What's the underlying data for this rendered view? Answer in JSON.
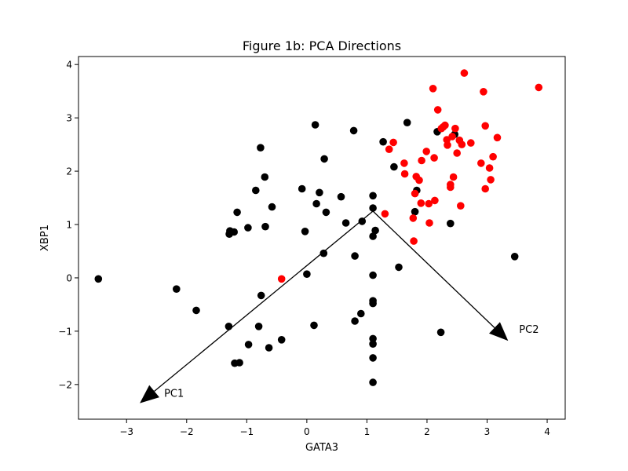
{
  "chart_data": {
    "type": "scatter",
    "title": "Figure 1b: PCA Directions",
    "xlabel": "GATA3",
    "ylabel": "XBP1",
    "xlim": [
      -3.8,
      4.3
    ],
    "ylim": [
      -2.65,
      4.15
    ],
    "xticks": [
      -3,
      -2,
      -1,
      0,
      1,
      2,
      3,
      4
    ],
    "yticks": [
      -2,
      -1,
      0,
      1,
      2,
      3,
      4
    ],
    "grid": false,
    "legend": "none",
    "colors": {
      "black_points": "#000000",
      "red_points": "#ff0000",
      "arrows": "#000000"
    },
    "series": [
      {
        "color": "#000000",
        "points": [
          [
            -3.47,
            -0.02
          ],
          [
            -2.17,
            -0.21
          ],
          [
            -1.84,
            -0.61
          ],
          [
            -1.3,
            -0.91
          ],
          [
            -1.29,
            0.82
          ],
          [
            -1.28,
            0.88
          ],
          [
            -1.21,
            0.86
          ],
          [
            -1.16,
            1.23
          ],
          [
            -1.2,
            -1.6
          ],
          [
            -1.12,
            -1.59
          ],
          [
            -0.98,
            0.94
          ],
          [
            -0.97,
            -1.25
          ],
          [
            -0.85,
            1.64
          ],
          [
            -0.8,
            -0.91
          ],
          [
            -0.77,
            2.44
          ],
          [
            -0.76,
            -0.33
          ],
          [
            -0.7,
            1.89
          ],
          [
            -0.69,
            0.96
          ],
          [
            -0.63,
            -1.31
          ],
          [
            -0.58,
            1.33
          ],
          [
            -0.42,
            -1.16
          ],
          [
            -0.08,
            1.67
          ],
          [
            -0.03,
            0.87
          ],
          [
            0.0,
            0.07
          ],
          [
            0.12,
            -0.89
          ],
          [
            0.14,
            2.87
          ],
          [
            0.16,
            1.39
          ],
          [
            0.21,
            1.6
          ],
          [
            0.28,
            0.46
          ],
          [
            0.29,
            2.23
          ],
          [
            0.32,
            1.23
          ],
          [
            0.57,
            1.52
          ],
          [
            0.65,
            1.03
          ],
          [
            0.78,
            2.76
          ],
          [
            0.8,
            0.41
          ],
          [
            0.8,
            -0.81
          ],
          [
            0.9,
            -0.67
          ],
          [
            0.92,
            1.06
          ],
          [
            1.1,
            1.54
          ],
          [
            1.1,
            1.31
          ],
          [
            1.1,
            0.78
          ],
          [
            1.1,
            0.05
          ],
          [
            1.1,
            -0.43
          ],
          [
            1.1,
            -0.48
          ],
          [
            1.1,
            -1.14
          ],
          [
            1.1,
            -1.24
          ],
          [
            1.1,
            -1.5
          ],
          [
            1.1,
            -1.96
          ],
          [
            1.14,
            0.89
          ],
          [
            1.27,
            2.55
          ],
          [
            1.45,
            2.08
          ],
          [
            1.53,
            0.2
          ],
          [
            1.67,
            2.91
          ],
          [
            1.8,
            1.24
          ],
          [
            1.83,
            1.64
          ],
          [
            2.17,
            2.74
          ],
          [
            2.23,
            -1.02
          ],
          [
            2.39,
            1.02
          ],
          [
            2.46,
            2.69
          ],
          [
            3.46,
            0.4
          ]
        ]
      },
      {
        "color": "#ff0000",
        "points": [
          [
            -0.42,
            -0.02
          ],
          [
            1.3,
            1.2
          ],
          [
            1.37,
            2.41
          ],
          [
            1.44,
            2.54
          ],
          [
            1.62,
            2.15
          ],
          [
            1.63,
            1.95
          ],
          [
            1.77,
            1.12
          ],
          [
            1.78,
            0.69
          ],
          [
            1.8,
            1.58
          ],
          [
            1.82,
            1.9
          ],
          [
            1.87,
            1.83
          ],
          [
            1.9,
            1.4
          ],
          [
            1.91,
            2.2
          ],
          [
            1.99,
            2.37
          ],
          [
            2.03,
            1.39
          ],
          [
            2.04,
            1.03
          ],
          [
            2.1,
            3.55
          ],
          [
            2.12,
            2.25
          ],
          [
            2.13,
            1.45
          ],
          [
            2.18,
            3.15
          ],
          [
            2.24,
            2.8
          ],
          [
            2.27,
            2.83
          ],
          [
            2.3,
            2.86
          ],
          [
            2.33,
            2.59
          ],
          [
            2.34,
            2.49
          ],
          [
            2.39,
            1.75
          ],
          [
            2.39,
            1.7
          ],
          [
            2.42,
            2.65
          ],
          [
            2.44,
            1.89
          ],
          [
            2.47,
            2.8
          ],
          [
            2.5,
            2.34
          ],
          [
            2.54,
            2.58
          ],
          [
            2.56,
            1.35
          ],
          [
            2.58,
            2.5
          ],
          [
            2.62,
            3.84
          ],
          [
            2.73,
            2.53
          ],
          [
            2.9,
            2.15
          ],
          [
            2.94,
            3.49
          ],
          [
            2.97,
            2.85
          ],
          [
            2.97,
            1.67
          ],
          [
            3.04,
            2.06
          ],
          [
            3.06,
            1.84
          ],
          [
            3.1,
            2.27
          ],
          [
            3.17,
            2.63
          ],
          [
            3.86,
            3.57
          ]
        ]
      }
    ],
    "arrows": [
      {
        "label": "PC1",
        "from": [
          1.1,
          1.25
        ],
        "to": [
          -2.78,
          -2.35
        ]
      },
      {
        "label": "PC2",
        "from": [
          1.1,
          1.25
        ],
        "to": [
          3.35,
          -1.18
        ]
      }
    ]
  }
}
